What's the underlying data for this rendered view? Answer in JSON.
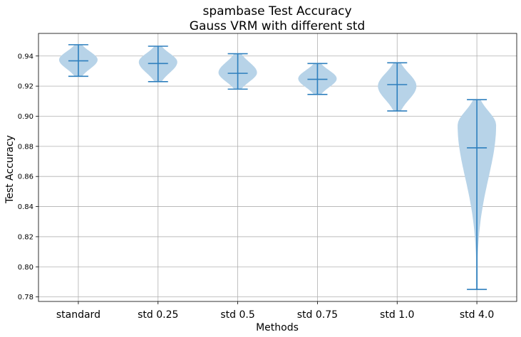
{
  "chart_data": {
    "type": "violin",
    "title": "spambase Test Accuracy",
    "subtitle": "Gauss VRM with different std",
    "xlabel": "Methods",
    "ylabel": "Test Accuracy",
    "ylim": [
      0.777,
      0.955
    ],
    "yticks": [
      0.78,
      0.8,
      0.82,
      0.84,
      0.86,
      0.88,
      0.9,
      0.92,
      0.94
    ],
    "ytick_labels": [
      "0.78",
      "0.80",
      "0.82",
      "0.84",
      "0.86",
      "0.88",
      "0.90",
      "0.92",
      "0.94"
    ],
    "grid": true,
    "categories": [
      "standard",
      "std 0.25",
      "std 0.5",
      "std 0.75",
      "std 1.0",
      "std 4.0"
    ],
    "colors": {
      "body": "#b7d3e8",
      "lines": "#2e7fbd",
      "grid": "#b0b0b0"
    },
    "violins": [
      {
        "min": 0.9265,
        "mean": 0.9368,
        "max": 0.9475,
        "mode": 0.9375
      },
      {
        "min": 0.923,
        "mean": 0.935,
        "max": 0.9465,
        "mode": 0.936
      },
      {
        "min": 0.918,
        "mean": 0.9285,
        "max": 0.9415,
        "mode": 0.929
      },
      {
        "min": 0.9145,
        "mean": 0.9245,
        "max": 0.935,
        "mode": 0.925
      },
      {
        "min": 0.9035,
        "mean": 0.921,
        "max": 0.9355,
        "mode": 0.92
      },
      {
        "min": 0.785,
        "mean": 0.879,
        "max": 0.911,
        "mode": 0.894
      }
    ]
  }
}
